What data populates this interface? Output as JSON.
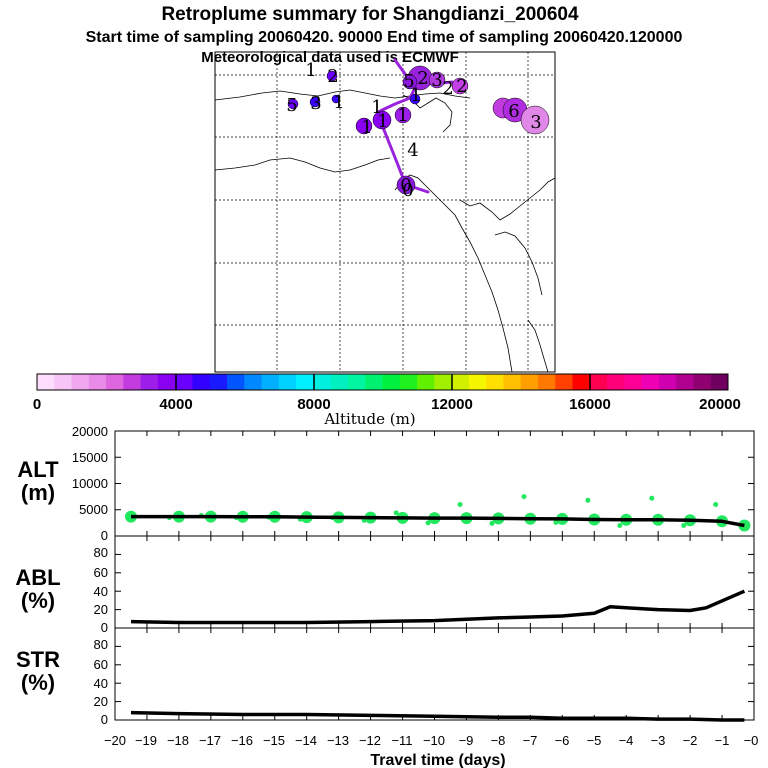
{
  "header": {
    "title": "Retroplume summary for Shangdianzi_200604",
    "sampling": "Start time of sampling 20060420. 90000     End time of sampling 20060420.120000",
    "met": "Meteorological data used is ECMWF"
  },
  "colorbar": {
    "ticks": [
      "0",
      "4000",
      "8000",
      "12000",
      "16000",
      "20000"
    ],
    "label": "Altitude (m)",
    "colors": [
      "#fcddfc",
      "#f7c6f7",
      "#f0a7f0",
      "#e88ae8",
      "#de66de",
      "#c23ce0",
      "#9c1ee8",
      "#8a00f0",
      "#6a00ff",
      "#3300ff",
      "#1a1aff",
      "#0055ff",
      "#0088ff",
      "#00b0ff",
      "#00d2ff",
      "#00f0ff",
      "#00f0e0",
      "#00f0c0",
      "#00f5a0",
      "#00f070",
      "#00f040",
      "#20f020",
      "#60f000",
      "#a0f000",
      "#d0f000",
      "#f5f500",
      "#ffdf00",
      "#ffc000",
      "#ffa000",
      "#ff7800",
      "#ff4000",
      "#ff0000",
      "#ff0050",
      "#ff0078",
      "#ff0096",
      "#f000b4",
      "#d000b0",
      "#b00090",
      "#900070",
      "#700060"
    ]
  },
  "map": {
    "track_color": "#9922dd",
    "numbers": [
      "1",
      "2",
      "1",
      "5",
      "3",
      "1",
      "1",
      "1",
      "1",
      "1",
      "5",
      "2",
      "3",
      "2",
      "2",
      "6",
      "3",
      "4",
      "0",
      "0"
    ]
  },
  "panels": {
    "alt_label": [
      "ALT",
      "(m)"
    ],
    "abl_label": [
      "ABL",
      "(%)"
    ],
    "str_label": [
      "STR",
      "(%)"
    ],
    "alt_ticks": [
      "20000",
      "15000",
      "10000",
      "5000",
      "0"
    ],
    "pct_ticks": [
      "80",
      "60",
      "40",
      "20",
      "0"
    ],
    "xlabel": "Travel time (days)",
    "x_ticks": [
      "−20",
      "−19",
      "−18",
      "−17",
      "−16",
      "−15",
      "−14",
      "−13",
      "−12",
      "−11",
      "−10",
      "−9",
      "−8",
      "−7",
      "−6",
      "−5",
      "−4",
      "−3",
      "−2",
      "−1",
      "−0"
    ]
  },
  "chart_data": [
    {
      "type": "line",
      "name": "ALT",
      "xlabel": "Travel time (days)",
      "ylabel": "ALT (m)",
      "xlim": [
        -20,
        0
      ],
      "ylim": [
        0,
        20000
      ],
      "x": [
        -19.5,
        -18,
        -17,
        -16,
        -15,
        -14,
        -13,
        -12,
        -11,
        -10,
        -9,
        -8,
        -7,
        -6,
        -5,
        -4,
        -3,
        -2,
        -1,
        -0.3
      ],
      "values": [
        3700,
        3700,
        3700,
        3650,
        3650,
        3600,
        3550,
        3500,
        3450,
        3400,
        3400,
        3350,
        3300,
        3250,
        3150,
        3100,
        3100,
        3000,
        2800,
        2000
      ],
      "spread_points": [
        {
          "x": -19.5,
          "y": 3400
        },
        {
          "x": -18.3,
          "y": 3500
        },
        {
          "x": -17.3,
          "y": 3900
        },
        {
          "x": -16.2,
          "y": 3500
        },
        {
          "x": -15.2,
          "y": 3600
        },
        {
          "x": -14.2,
          "y": 3200
        },
        {
          "x": -13.2,
          "y": 3500
        },
        {
          "x": -12.2,
          "y": 3000
        },
        {
          "x": -11.2,
          "y": 4400
        },
        {
          "x": -10.2,
          "y": 2500
        },
        {
          "x": -9.2,
          "y": 6000
        },
        {
          "x": -8.2,
          "y": 2400
        },
        {
          "x": -7.2,
          "y": 7500
        },
        {
          "x": -6.2,
          "y": 2600
        },
        {
          "x": -5.2,
          "y": 6800
        },
        {
          "x": -4.2,
          "y": 2000
        },
        {
          "x": -3.2,
          "y": 7200
        },
        {
          "x": -2.2,
          "y": 2000
        },
        {
          "x": -1.2,
          "y": 6000
        },
        {
          "x": -0.4,
          "y": 2000
        }
      ]
    },
    {
      "type": "line",
      "name": "ABL",
      "ylabel": "ABL (%)",
      "xlim": [
        -20,
        0
      ],
      "ylim": [
        0,
        100
      ],
      "x": [
        -19.5,
        -18,
        -16,
        -14,
        -12,
        -10,
        -8,
        -7,
        -6,
        -5,
        -4.5,
        -3.5,
        -3,
        -2,
        -1.5,
        -0.3
      ],
      "values": [
        7,
        6,
        6,
        6,
        7,
        8,
        11,
        12,
        13,
        16,
        23,
        21,
        20,
        19,
        22,
        40
      ]
    },
    {
      "type": "line",
      "name": "STR",
      "ylabel": "STR (%)",
      "xlim": [
        -20,
        0
      ],
      "ylim": [
        0,
        100
      ],
      "x": [
        -19.5,
        -18,
        -16,
        -14,
        -12,
        -10,
        -8,
        -7,
        -6,
        -5,
        -4,
        -3,
        -2,
        -1,
        -0.3
      ],
      "values": [
        8,
        7,
        6,
        6,
        5,
        4,
        3,
        3,
        2,
        2,
        2,
        1,
        1,
        0,
        0
      ]
    }
  ]
}
